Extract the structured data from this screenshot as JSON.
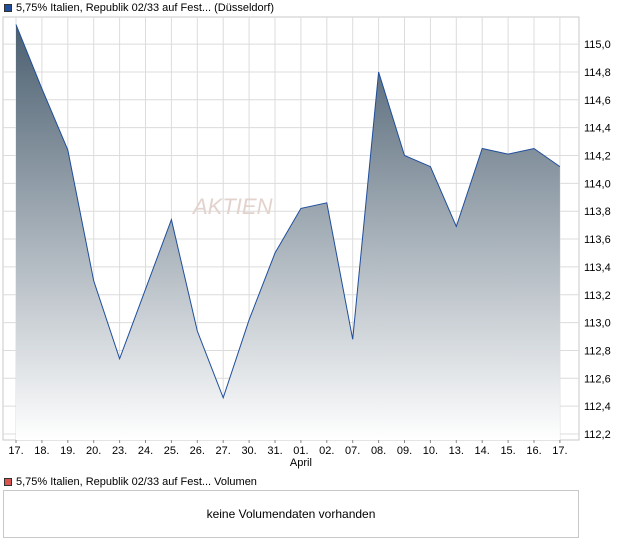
{
  "price_legend": "5,75% Italien, Republik 02/33 auf Fest... (Düsseldorf)",
  "volume_legend": "5,75% Italien, Republik 02/33 auf Fest... Volumen",
  "volume_message": "keine Volumendaten vorhanden",
  "watermark": "AKTIEN",
  "colors": {
    "line": "#1f4e9c",
    "fill_top": "#4b5f70",
    "fill_bottom": "#ffffff",
    "grid": "#dcdcdc"
  },
  "chart_data": {
    "type": "area",
    "x": [
      "17.",
      "18.",
      "19.",
      "20.",
      "23.",
      "24.",
      "25.",
      "26.",
      "27.",
      "30.",
      "31.",
      "01.",
      "02.",
      "07.",
      "08.",
      "09.",
      "10.",
      "13.",
      "14.",
      "15.",
      "16.",
      "17."
    ],
    "x_sublabel": {
      "index": 11,
      "text": "April"
    },
    "y": [
      115.14,
      114.68,
      114.24,
      113.3,
      112.74,
      113.24,
      113.74,
      112.94,
      112.46,
      113.02,
      113.5,
      113.82,
      113.86,
      112.88,
      114.8,
      114.2,
      114.12,
      113.69,
      114.25,
      114.21,
      114.25,
      114.12
    ],
    "ylim": [
      112.2,
      115.2
    ],
    "yticks": [
      "115,0",
      "114,8",
      "114,6",
      "114,4",
      "114,2",
      "114,0",
      "113,8",
      "113,6",
      "113,4",
      "113,2",
      "113,0",
      "112,8",
      "112,6",
      "112,4",
      "112,2"
    ],
    "grid": true
  }
}
